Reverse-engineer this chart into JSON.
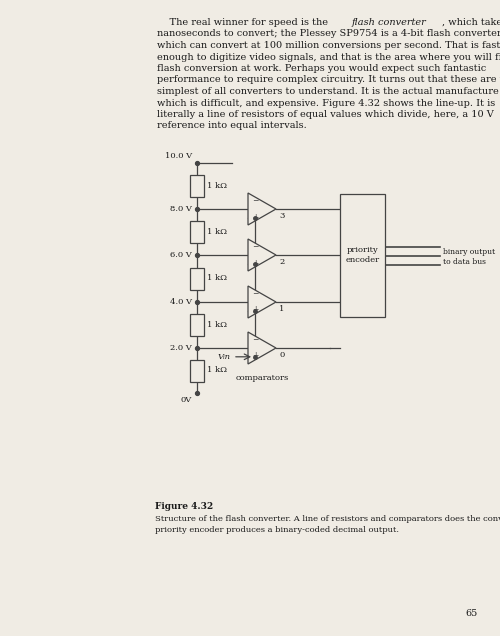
{
  "bg_color": "#f0ece4",
  "text_color": "#1a1a1a",
  "page_number": "65",
  "paragraph_line1": "    The real winner for speed is the ",
  "paragraph_italic": "flash converter",
  "paragraph_line1b": ", which takes only",
  "paragraph_lines": [
    "nanoseconds to convert; the Plessey SP9754 is a 4-bit flash converter",
    "which can convert at 100 million conversions per second. That is fast",
    "enough to digitize video signals, and that is the area where you will find",
    "flash conversion at work. Perhaps you would expect such fantastic",
    "performance to require complex circuitry. It turns out that these are the",
    "simplest of all converters to understand. It is the actual manufacture",
    "which is difficult, and expensive. Figure 4.32 shows the line-up. It is",
    "literally a line of resistors of equal values which divide, here, a 10 V",
    "reference into equal intervals."
  ],
  "figure_label": "Figure 4.32",
  "figure_caption_line1": "Structure of the flash converter. A line of resistors and comparators does the conversion. A",
  "figure_caption_line2": "priority encoder produces a binary-coded decimal output.",
  "voltage_labels": [
    "10.0 V",
    "8.0 V",
    "6.0 V",
    "4.0 V",
    "2.0 V",
    "0V"
  ],
  "resistor_label": "1 kΩ",
  "comparator_numbers": [
    "3",
    "2",
    "1",
    "0"
  ],
  "vin_label": "Vᵢn",
  "priority_label_line1": "priority",
  "priority_label_line2": "encoder",
  "binary_output_line1": "binary output",
  "binary_output_line2": "to data bus",
  "comparators_label": "comparators",
  "wire_color": "#444444",
  "lw": 0.9
}
